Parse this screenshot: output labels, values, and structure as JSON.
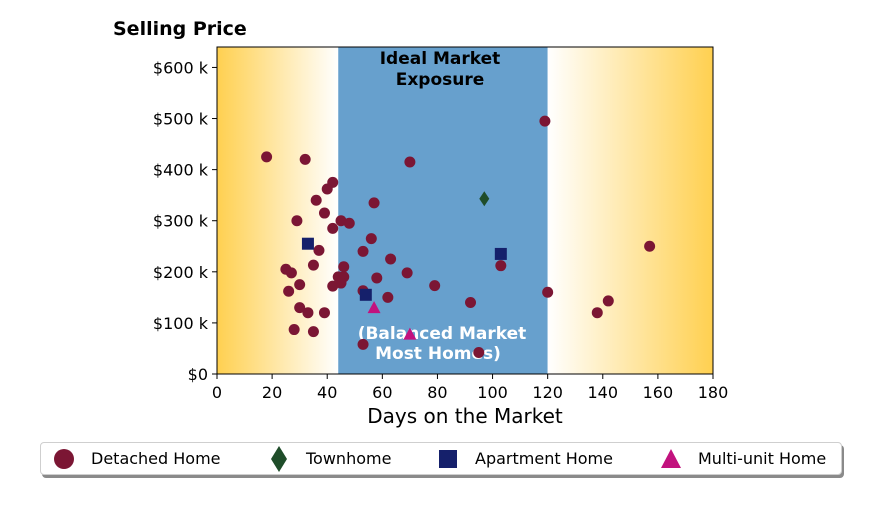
{
  "chart_data": {
    "type": "scatter",
    "title": "Selling Price",
    "xlabel": "Days on the Market",
    "ylabel": "",
    "xlim": [
      0,
      180
    ],
    "ylim": [
      0,
      640000
    ],
    "x_ticks": [
      0,
      20,
      40,
      60,
      80,
      100,
      120,
      140,
      160,
      180
    ],
    "x_tick_labels": [
      "0",
      "20",
      "40",
      "60",
      "80",
      "100",
      "120",
      "140",
      "160",
      "180"
    ],
    "y_ticks": [
      0,
      100000,
      200000,
      300000,
      400000,
      500000,
      600000
    ],
    "y_tick_labels": [
      "$0",
      "$100 k",
      "$200 k",
      "$300 k",
      "$400 k",
      "$500 k",
      "$600 k"
    ],
    "grid": false,
    "legend_position": "bottom",
    "bands": [
      {
        "x_start": 0,
        "x_end": 44,
        "style": "gradient",
        "color": "#FFD050",
        "fade_to": "#FFFFFF"
      },
      {
        "x_start": 44,
        "x_end": 120,
        "style": "solid",
        "color": "#67A0CD",
        "label_top": [
          "Ideal Market",
          "Exposure"
        ],
        "label_bottom": [
          "(Balanced Market",
          "Most Homes)"
        ]
      },
      {
        "x_start": 120,
        "x_end": 180,
        "style": "gradient",
        "color": "#FFFFFF",
        "fade_to": "#FFD050"
      }
    ],
    "series": [
      {
        "name": "Detached Home",
        "marker": "circle",
        "color": "#7B1634",
        "points": [
          [
            18,
            425000
          ],
          [
            32,
            420000
          ],
          [
            70,
            415000
          ],
          [
            119,
            495000
          ],
          [
            42,
            375000
          ],
          [
            40,
            362000
          ],
          [
            36,
            340000
          ],
          [
            57,
            335000
          ],
          [
            39,
            315000
          ],
          [
            29,
            300000
          ],
          [
            45,
            300000
          ],
          [
            48,
            295000
          ],
          [
            42,
            285000
          ],
          [
            56,
            265000
          ],
          [
            37,
            242000
          ],
          [
            53,
            240000
          ],
          [
            157,
            250000
          ],
          [
            63,
            225000
          ],
          [
            103,
            212000
          ],
          [
            35,
            213000
          ],
          [
            46,
            210000
          ],
          [
            25,
            205000
          ],
          [
            27,
            198000
          ],
          [
            69,
            198000
          ],
          [
            44,
            190000
          ],
          [
            46,
            190000
          ],
          [
            58,
            188000
          ],
          [
            45,
            178000
          ],
          [
            30,
            175000
          ],
          [
            42,
            172000
          ],
          [
            79,
            173000
          ],
          [
            26,
            162000
          ],
          [
            120,
            160000
          ],
          [
            53,
            163000
          ],
          [
            62,
            150000
          ],
          [
            142,
            143000
          ],
          [
            92,
            140000
          ],
          [
            30,
            130000
          ],
          [
            33,
            120000
          ],
          [
            39,
            120000
          ],
          [
            138,
            120000
          ],
          [
            28,
            87000
          ],
          [
            35,
            83000
          ],
          [
            53,
            58000
          ],
          [
            95,
            42000
          ]
        ]
      },
      {
        "name": "Townhome",
        "marker": "diamond",
        "color": "#1F4D2A",
        "points": [
          [
            97,
            343000
          ]
        ]
      },
      {
        "name": "Apartment Home",
        "marker": "square",
        "color": "#15206B",
        "points": [
          [
            33,
            255000
          ],
          [
            103,
            235000
          ],
          [
            54,
            155000
          ]
        ]
      },
      {
        "name": "Multi-unit Home",
        "marker": "triangle",
        "color": "#C2127E",
        "points": [
          [
            57,
            130000
          ],
          [
            70,
            78000
          ]
        ]
      }
    ]
  },
  "legend": {
    "items": [
      {
        "label": "Detached Home",
        "icon": "circle-marker-icon"
      },
      {
        "label": "Townhome",
        "icon": "diamond-marker-icon"
      },
      {
        "label": "Apartment Home",
        "icon": "square-marker-icon"
      },
      {
        "label": "Multi-unit Home",
        "icon": "triangle-marker-icon"
      }
    ]
  }
}
